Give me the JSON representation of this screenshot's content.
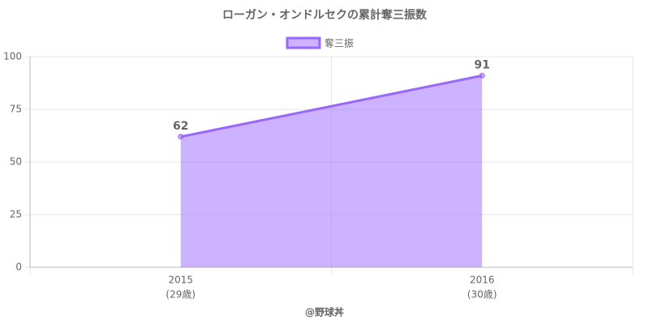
{
  "chart_data": {
    "type": "area",
    "title": "ローガン・オンドルセクの累計奪三振数",
    "categories": [
      "2015",
      "2016"
    ],
    "x_sublabels": [
      "(29歳)",
      "(30歳)"
    ],
    "series": [
      {
        "name": "奪三振",
        "color": "#9966ff",
        "values": [
          62,
          91
        ]
      }
    ],
    "ylim": [
      0,
      100
    ],
    "yticks": [
      0,
      25,
      50,
      75,
      100
    ],
    "grid": true,
    "legend": "top",
    "credit": "@野球丼"
  }
}
